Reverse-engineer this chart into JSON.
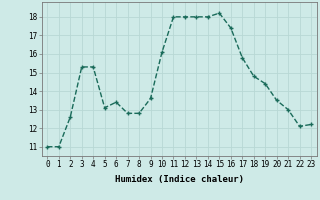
{
  "x": [
    0,
    1,
    2,
    3,
    4,
    5,
    6,
    7,
    8,
    9,
    10,
    11,
    12,
    13,
    14,
    15,
    16,
    17,
    18,
    19,
    20,
    21,
    22,
    23
  ],
  "y": [
    11,
    11,
    12.6,
    15.3,
    15.3,
    13.1,
    13.4,
    12.8,
    12.8,
    13.6,
    16.1,
    18.0,
    18.0,
    18.0,
    18.0,
    18.2,
    17.4,
    15.8,
    14.8,
    14.4,
    13.5,
    13.0,
    12.1,
    12.2
  ],
  "line_color": "#1a6b5a",
  "marker": "+",
  "marker_size": 3,
  "linewidth": 1.0,
  "xlabel": "Humidex (Indice chaleur)",
  "xlim": [
    -0.5,
    23.5
  ],
  "ylim": [
    10.5,
    18.8
  ],
  "yticks": [
    11,
    12,
    13,
    14,
    15,
    16,
    17,
    18
  ],
  "xticks": [
    0,
    1,
    2,
    3,
    4,
    5,
    6,
    7,
    8,
    9,
    10,
    11,
    12,
    13,
    14,
    15,
    16,
    17,
    18,
    19,
    20,
    21,
    22,
    23
  ],
  "background_color": "#ceeae7",
  "grid_color": "#b8d8d4",
  "tick_fontsize": 5.5,
  "xlabel_fontsize": 6.5
}
